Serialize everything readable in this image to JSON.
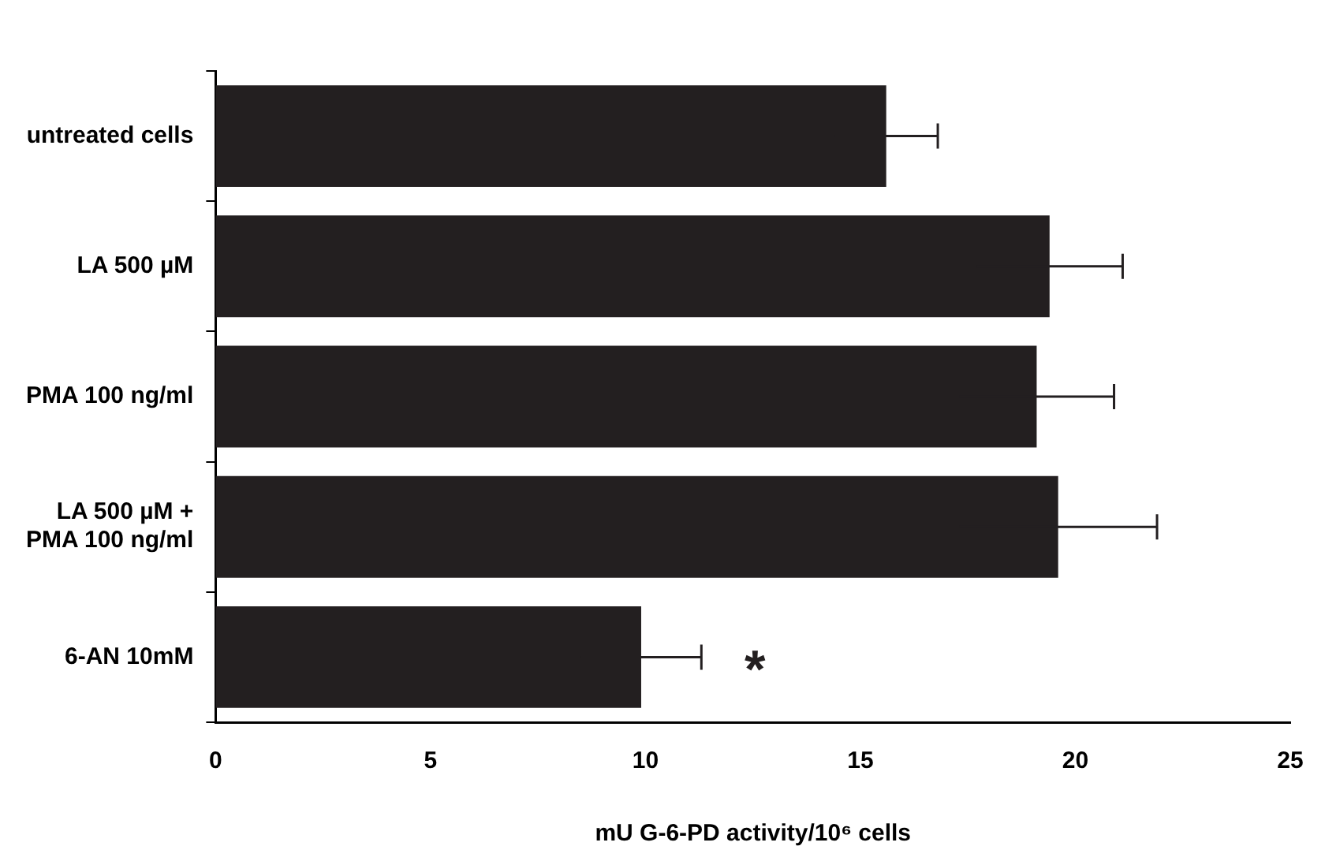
{
  "chart_data": {
    "type": "bar",
    "orientation": "horizontal",
    "xlabel": "mU G-6-PD activity/10⁶ cells",
    "categories": [
      "untreated cells",
      "LA 500 µM",
      "PMA 100 ng/ml",
      "LA 500 µM + PMA 100 ng/ml",
      "6-AN 10mM"
    ],
    "values": [
      15.6,
      19.4,
      19.1,
      19.6,
      9.9
    ],
    "errors": [
      1.2,
      1.7,
      1.8,
      2.3,
      1.4
    ],
    "color": "#231f20",
    "xlim": [
      0,
      25
    ],
    "xticks": [
      0,
      5,
      10,
      15,
      20,
      25
    ],
    "grid": false,
    "legend": false,
    "annotations": [
      {
        "text": "*",
        "x": 9.9,
        "y": "6-AN 10mM"
      }
    ]
  }
}
